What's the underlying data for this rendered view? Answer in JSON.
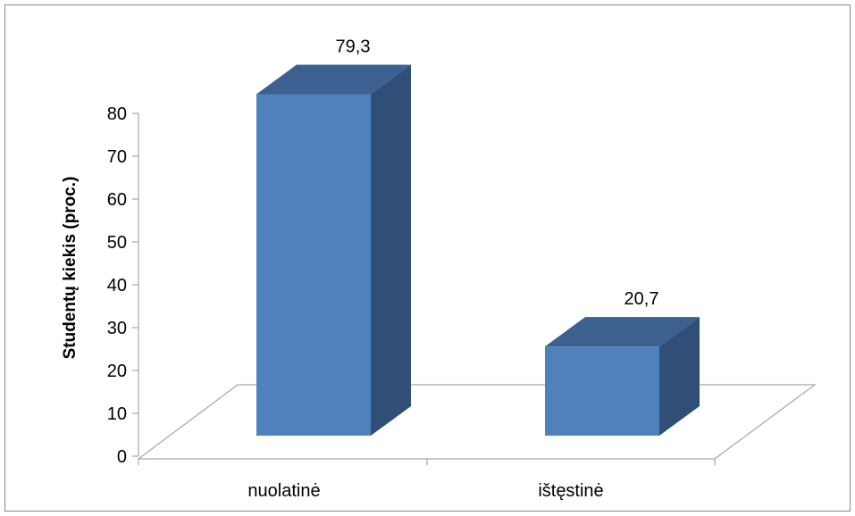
{
  "chart_data": {
    "type": "bar",
    "categories": [
      "nuolatinė",
      "ištęstinė"
    ],
    "values": [
      79.3,
      20.7
    ],
    "data_labels": [
      "79,3",
      "20,7"
    ],
    "title": "",
    "xlabel": "",
    "ylabel": "Studentų kiekis (proc.)",
    "ylim": [
      0,
      80
    ],
    "yticks": [
      0,
      10,
      20,
      30,
      40,
      50,
      60,
      70,
      80
    ],
    "three_d": true,
    "colors": {
      "front": "#4f81bd",
      "top": "#3c6090",
      "side": "#2f4f77",
      "floor_line": "#a6a6a6"
    },
    "grid": false,
    "legend": "none"
  }
}
